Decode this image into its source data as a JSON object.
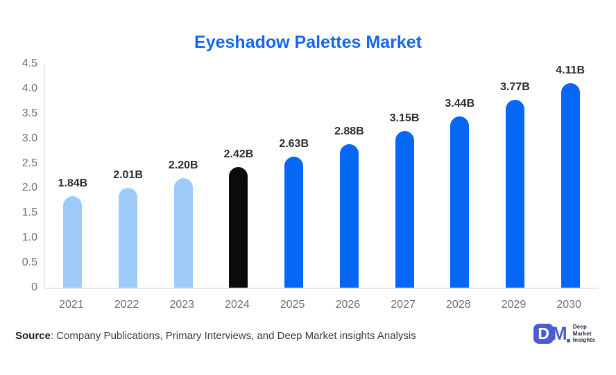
{
  "title": "Eyeshadow Palettes Market",
  "chart_data": {
    "type": "bar",
    "title": "Eyeshadow Palettes Market",
    "categories": [
      "2021",
      "2022",
      "2023",
      "2024",
      "2025",
      "2026",
      "2027",
      "2028",
      "2029",
      "2030"
    ],
    "values": [
      1.84,
      2.01,
      2.2,
      2.42,
      2.63,
      2.88,
      3.15,
      3.44,
      3.77,
      4.11
    ],
    "value_labels": [
      "1.84B",
      "2.01B",
      "2.20B",
      "2.42B",
      "2.63B",
      "2.88B",
      "3.15B",
      "3.44B",
      "3.77B",
      "4.11B"
    ],
    "bar_colors": [
      "#9ecbf9",
      "#9ecbf9",
      "#9ecbf9",
      "#0b0b0b",
      "#0667f6",
      "#0667f6",
      "#0667f6",
      "#0667f6",
      "#0667f6",
      "#0667f6"
    ],
    "yticks": [
      "4.5",
      "4.0",
      "3.5",
      "3.0",
      "2.5",
      "2.0",
      "1.5",
      "1.0",
      "0.5",
      "0"
    ],
    "ylim": [
      0,
      4.5
    ],
    "xlabel": "",
    "ylabel": "",
    "grid": false,
    "legend": false,
    "colors": {
      "historic_bar": "#9ecbf9",
      "base_year_bar": "#0b0b0b",
      "forecast_bar": "#0667f6",
      "title": "#1566f2",
      "axis_text": "#6e6e6e",
      "value_text": "#2d2d2d"
    }
  },
  "footer": {
    "source_label": "Source",
    "source_text": ": Company Publications, Primary Interviews, and Deep Market insights Analysis",
    "logo": {
      "mark_d": "D",
      "mark_m": "M",
      "line1": "Deep",
      "line2": "Market",
      "line3": "Insights"
    }
  }
}
